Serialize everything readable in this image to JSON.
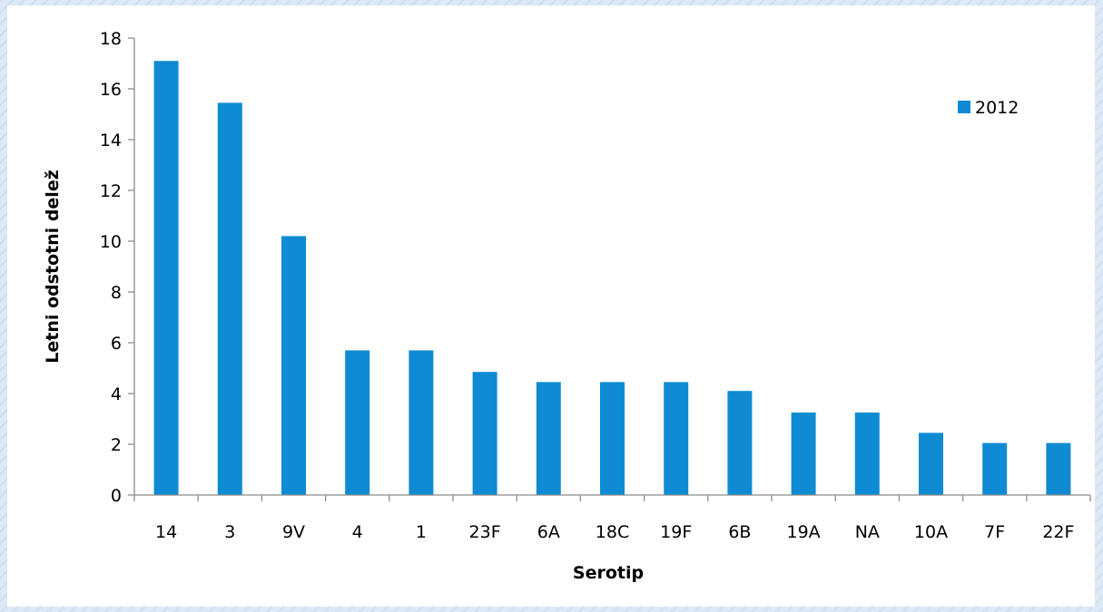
{
  "chart_data": {
    "type": "bar",
    "title": "",
    "xlabel": "Serotip",
    "ylabel": "Letni odstotni delež",
    "categories": [
      "14",
      "3",
      "9V",
      "4",
      "1",
      "23F",
      "6A",
      "18C",
      "19F",
      "6B",
      "19A",
      "NA",
      "10A",
      "7F",
      "22F"
    ],
    "series": [
      {
        "name": "2012",
        "values": [
          17.1,
          15.45,
          10.2,
          5.7,
          5.7,
          4.85,
          4.45,
          4.45,
          4.45,
          4.1,
          3.25,
          3.25,
          2.45,
          2.05,
          2.05
        ]
      }
    ],
    "ylim": [
      0,
      18
    ],
    "yticks": [
      "0",
      "2",
      "4",
      "6",
      "8",
      "10",
      "12",
      "14",
      "16",
      "18"
    ],
    "grid": false,
    "legend_position": "top-right",
    "colors": {
      "bar": "#0f8bd3",
      "axis": "#8c8c8c",
      "text": "#000000"
    }
  }
}
